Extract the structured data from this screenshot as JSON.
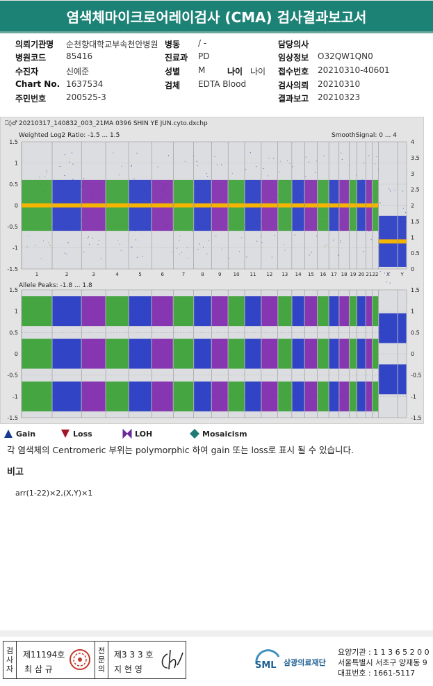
{
  "report_title": "염색체마이크로어레이검사 (CMA) 검사결과보고서",
  "info_rows": [
    [
      {
        "label": "의뢰기관명",
        "value": "순천향대학교부속천안병원"
      },
      {
        "label": "병동",
        "value": "/ -"
      },
      {
        "label": "담당의사",
        "value": ""
      }
    ],
    [
      {
        "label": "병원코드",
        "value": "85416"
      },
      {
        "label": "진료과",
        "value": "PD"
      },
      {
        "label": "임상정보",
        "value": "O32QW1QN0"
      }
    ],
    [
      {
        "label": "수진자",
        "value": "신예준"
      },
      {
        "label": "성별",
        "value": "M"
      },
      {
        "label": "접수번호",
        "value": "20210310-40601"
      }
    ],
    [
      {
        "label": "Chart No.",
        "value": "1637534"
      },
      {
        "label": "검체",
        "value": "EDTA Blood"
      },
      {
        "label": "검사의뢰",
        "value": "20210310"
      }
    ],
    [
      {
        "label": "주민번호",
        "value": "200525-3"
      },
      {
        "label": "",
        "value": ""
      },
      {
        "label": "결과보고",
        "value": "20210323"
      }
    ]
  ],
  "age": {
    "label": "나이",
    "value": "나이"
  },
  "plot": {
    "file_name": "20210317_140832_003_21MA 0396 SHIN YE JUN.cyto.dxchp",
    "top_title": "Weighted Log2 Ratio: -1.5 ... 1.5",
    "top_right_title": "SmoothSignal: 0 ... 4",
    "bottom_title": "Allele Peaks: -1.8 ... 1.8",
    "left_ticks_top": [
      "1.5",
      "1",
      "0.5",
      "0",
      "-0.5",
      "-1",
      "-1.5"
    ],
    "right_ticks_top": [
      "4",
      "3.5",
      "3",
      "2.5",
      "2",
      "1.5",
      "1",
      "0.5",
      "0"
    ],
    "ticks_bottom": [
      "1.5",
      "1",
      "0.5",
      "0",
      "-0.5",
      "-1",
      "-1.5"
    ],
    "chromosomes": [
      "1",
      "2",
      "3",
      "4",
      "5",
      "6",
      "7",
      "8",
      "9",
      "10",
      "11",
      "12",
      "13",
      "14",
      "15",
      "16",
      "17",
      "18",
      "19",
      "20",
      "21",
      "22",
      "X",
      "Y"
    ]
  },
  "legend": [
    {
      "label": "Gain",
      "icon": "triangle-up",
      "color": "#1a3a8f"
    },
    {
      "label": "Loss",
      "icon": "triangle-down",
      "color": "#a3152a"
    },
    {
      "label": "LOH",
      "icon": "bowtie",
      "color": "#6a2a9a"
    },
    {
      "label": "Mosaicism",
      "icon": "diamond",
      "color": "#1f7a74"
    }
  ],
  "note": "각 염색체의 Centromeric 부위는 polymorphic 하여 gain 또는 loss로 표시 될 수 있습니다.",
  "remark_heading": "비고",
  "remark_text": "arr(1-22)×2,(X,Y)×1",
  "footer": {
    "cell1_label": [
      "검",
      "사",
      "자"
    ],
    "cell1_no": "제11194호",
    "cell1_name": "최 삼 규",
    "cell2_label": [
      "전",
      "문",
      "의"
    ],
    "cell2_no": "제3 3 3 호",
    "cell2_name": "지 현 영",
    "logo_text": "SML",
    "org_name": "삼광의료재단",
    "line1": "요양기관 : 1 1 3 6 5 2 0 0",
    "line2": "서울특별시 서초구 양재동 9",
    "line3": "대표번호 : 1661-5117"
  }
}
